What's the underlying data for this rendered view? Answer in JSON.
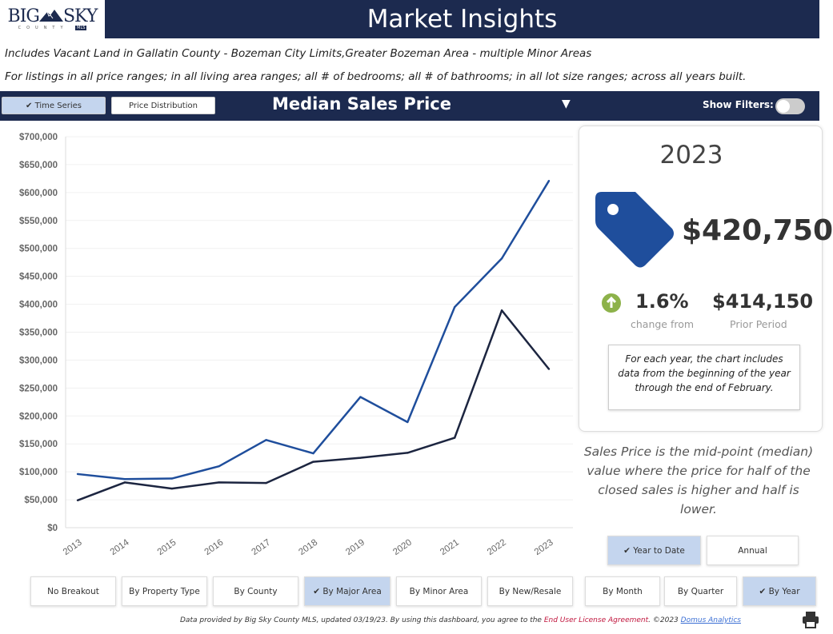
{
  "header": {
    "logo_big": "BIG",
    "logo_sky": "SKY",
    "logo_county": "COUNTY",
    "logo_mls": "MLS",
    "title": "Market Insights"
  },
  "subtitle": {
    "line1": "Includes Vacant Land in Gallatin County - Bozeman City Limits,Greater Bozeman Area - multiple Minor Areas",
    "line2": "For listings in all price ranges; in all living area ranges; all # of bedrooms; all # of bathrooms; in all lot size ranges; across all years built."
  },
  "toolbar": {
    "time_series": "✔ Time Series",
    "price_distribution": "Price Distribution",
    "metric": "Median Sales Price",
    "dropdown_icon": "caret-down",
    "show_filters": "Show Filters:",
    "filters_on": false
  },
  "colors": {
    "navy": "#1c2a4f",
    "series_blue": "#1f4e9c",
    "series_dark": "#1c2540",
    "up_green": "#8db24a"
  },
  "chart_data": {
    "type": "line",
    "categories": [
      "2013",
      "2014",
      "2015",
      "2016",
      "2017",
      "2018",
      "2019",
      "2020",
      "2021",
      "2022",
      "2023"
    ],
    "series": [
      {
        "values": [
          96000,
          87000,
          88000,
          110000,
          157000,
          133000,
          234000,
          189000,
          395000,
          482000,
          621000
        ],
        "color": "#1f4e9c"
      },
      {
        "values": [
          49000,
          81000,
          70000,
          81000,
          80000,
          118000,
          125000,
          134000,
          161000,
          389000,
          284000
        ],
        "color": "#1c2540"
      }
    ],
    "yticks": [
      "$0",
      "$50,000",
      "$100,000",
      "$150,000",
      "$200,000",
      "$250,000",
      "$300,000",
      "$350,000",
      "$400,000",
      "$450,000",
      "$500,000",
      "$550,000",
      "$600,000",
      "$650,000",
      "$700,000"
    ],
    "ylim": [
      0,
      700000
    ],
    "grid": true
  },
  "card": {
    "year": "2023",
    "price": "$420,750",
    "change": "1.6%",
    "change_dir": "up",
    "change_caption": "change from",
    "prior": "$414,150",
    "prior_caption": "Prior Period",
    "note": "For each year, the chart includes data from the beginning of the year through the end of February."
  },
  "description": "Sales Price is the mid-point (median) value where the price for half of the closed sales is higher and half is lower.",
  "period_buttons": [
    {
      "label": "✔ Year to Date",
      "selected": true
    },
    {
      "label": "Annual",
      "selected": false
    }
  ],
  "breakout_buttons": [
    {
      "label": "No Breakout"
    },
    {
      "label": "By Property Type"
    },
    {
      "label": "By County"
    },
    {
      "label": "✔ By Major Area"
    },
    {
      "label": "By Minor Area"
    },
    {
      "label": "By New/Resale"
    },
    {
      "label": "By Month"
    },
    {
      "label": "By Quarter"
    },
    {
      "label": "✔ By Year"
    }
  ],
  "footer": {
    "text1": "Data provided by Big Sky County MLS, updated 03/19/23.  By using this dashboard, you agree to the ",
    "eula": "End User License Agreement",
    "text2": ".  ©2023 ",
    "domus": "Domus Analytics"
  }
}
